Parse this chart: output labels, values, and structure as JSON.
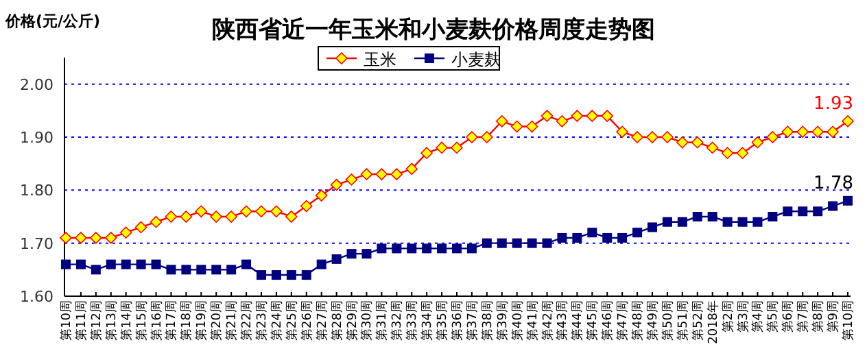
{
  "chart_data": {
    "type": "line",
    "title": "陕西省近一年玉米和小麦麸价格周度走势图",
    "ylabel": "价格(元/公斤)",
    "categories": [
      "第10周",
      "第11周",
      "第12周",
      "第13周",
      "第14周",
      "第15周",
      "第16周",
      "第17周",
      "第18周",
      "第19周",
      "第20周",
      "第21周",
      "第22周",
      "第23周",
      "第24周",
      "第25周",
      "第26周",
      "第27周",
      "第28周",
      "第29周",
      "第30周",
      "第31周",
      "第32周",
      "第33周",
      "第34周",
      "第35周",
      "第36周",
      "第37周",
      "第38周",
      "第39周",
      "第40周",
      "第41周",
      "第42周",
      "第43周",
      "第44周",
      "第45周",
      "第46周",
      "第47周",
      "第48周",
      "第49周",
      "第50周",
      "第51周",
      "第52周",
      "2018年",
      "第2周",
      "第3周",
      "第4周",
      "第5周",
      "第6周",
      "第7周",
      "第8周",
      "第9周",
      "第10周"
    ],
    "series": [
      {
        "name": "玉米",
        "color": "#ff0000",
        "marker": "diamond",
        "values": [
          1.71,
          1.71,
          1.71,
          1.71,
          1.72,
          1.73,
          1.74,
          1.75,
          1.75,
          1.76,
          1.75,
          1.75,
          1.76,
          1.76,
          1.76,
          1.75,
          1.77,
          1.79,
          1.81,
          1.82,
          1.83,
          1.83,
          1.83,
          1.84,
          1.87,
          1.88,
          1.88,
          1.9,
          1.9,
          1.93,
          1.92,
          1.92,
          1.94,
          1.93,
          1.94,
          1.94,
          1.94,
          1.91,
          1.9,
          1.9,
          1.9,
          1.89,
          1.89,
          1.88,
          1.87,
          1.87,
          1.89,
          1.9,
          1.91,
          1.91,
          1.91,
          1.91,
          1.93
        ],
        "value_labels": [
          null,
          null,
          null,
          null,
          null,
          null,
          null,
          null,
          null,
          null,
          null,
          null,
          null,
          null,
          null,
          null,
          null,
          null,
          null,
          null,
          null,
          null,
          null,
          null,
          null,
          null,
          null,
          null,
          null,
          null,
          null,
          null,
          null,
          null,
          null,
          null,
          null,
          null,
          null,
          null,
          null,
          null,
          null,
          null,
          null,
          null,
          null,
          null,
          null,
          null,
          null,
          null,
          "1.93"
        ]
      },
      {
        "name": "小麦麸",
        "color": "#000080",
        "marker": "square",
        "values": [
          1.66,
          1.66,
          1.65,
          1.66,
          1.66,
          1.66,
          1.66,
          1.65,
          1.65,
          1.65,
          1.65,
          1.65,
          1.66,
          1.64,
          1.64,
          1.64,
          1.64,
          1.66,
          1.67,
          1.68,
          1.68,
          1.69,
          1.69,
          1.69,
          1.69,
          1.69,
          1.69,
          1.69,
          1.7,
          1.7,
          1.7,
          1.7,
          1.7,
          1.71,
          1.71,
          1.72,
          1.71,
          1.71,
          1.72,
          1.73,
          1.74,
          1.74,
          1.75,
          1.75,
          1.74,
          1.74,
          1.74,
          1.75,
          1.76,
          1.76,
          1.76,
          1.77,
          1.78
        ],
        "value_labels": [
          null,
          null,
          null,
          null,
          null,
          null,
          null,
          null,
          null,
          null,
          null,
          null,
          null,
          null,
          null,
          null,
          null,
          null,
          null,
          null,
          null,
          null,
          null,
          null,
          null,
          null,
          null,
          null,
          null,
          null,
          null,
          null,
          null,
          null,
          null,
          null,
          null,
          null,
          null,
          null,
          null,
          null,
          null,
          null,
          null,
          null,
          null,
          null,
          null,
          null,
          null,
          null,
          "1.78"
        ]
      }
    ],
    "ylim": [
      1.6,
      2.05
    ],
    "yticks": [
      {
        "value": 1.6,
        "label": "1.60"
      },
      {
        "value": 1.7,
        "label": "1.70"
      },
      {
        "value": 1.8,
        "label": "1.80"
      },
      {
        "value": 1.9,
        "label": "1.90"
      },
      {
        "value": 2.0,
        "label": "2.00"
      }
    ],
    "grid": "y",
    "legend": "top",
    "line_style": "solid"
  }
}
